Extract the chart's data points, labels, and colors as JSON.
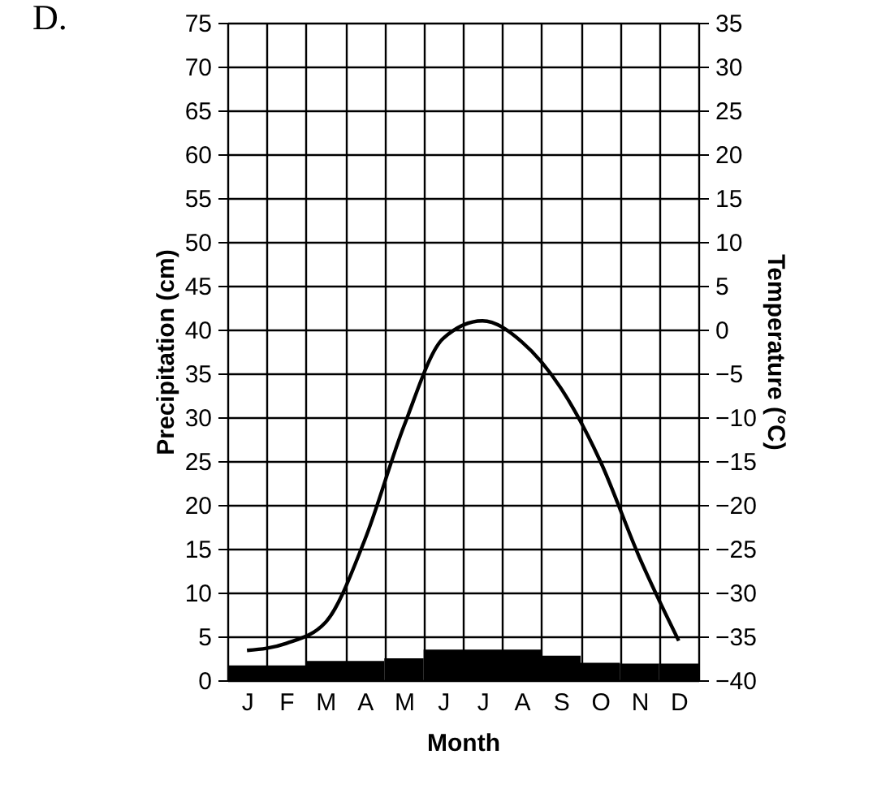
{
  "chart_data": {
    "type": "bar",
    "title": "D.",
    "xlabel": "Month",
    "ylabel": "Precipitation (cm)",
    "y2label": "Temperature (°C)",
    "categories": [
      "J",
      "F",
      "M",
      "A",
      "M",
      "J",
      "J",
      "A",
      "S",
      "O",
      "N",
      "D"
    ],
    "series": [
      {
        "color": "#000000",
        "values": [
          1.7,
          1.7,
          2.2,
          2.2,
          2.5,
          3.5,
          3.5,
          3.5,
          2.8,
          2.0,
          1.9,
          1.9
        ]
      },
      {
        "type": "line",
        "axis": "y2",
        "color": "#000000",
        "values": [
          -36.6,
          -35.8,
          -33.4,
          -24,
          -11,
          -1,
          1.0,
          -1.4,
          -6.7,
          -15,
          -26,
          -35.5
        ]
      }
    ],
    "ylim": [
      0,
      75
    ],
    "yticks": [
      0,
      5,
      10,
      15,
      20,
      25,
      30,
      35,
      40,
      45,
      50,
      55,
      60,
      65,
      70,
      75
    ],
    "y2lim": [
      -40,
      35
    ],
    "y2ticks": [
      -40,
      -35,
      -30,
      -25,
      -20,
      -15,
      -10,
      -5,
      0,
      5,
      10,
      15,
      20,
      25,
      30,
      35
    ],
    "grid": true,
    "marker": "none",
    "line_style": "solid"
  }
}
